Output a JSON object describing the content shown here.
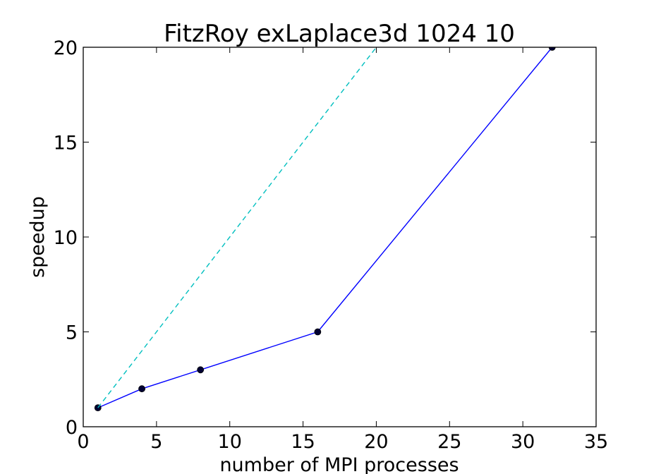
{
  "chart_data": {
    "type": "line",
    "title": "FitzRoy exLaplace3d 1024 10",
    "xlabel": "number of MPI processes",
    "ylabel": "speedup",
    "xlim": [
      0,
      35
    ],
    "ylim": [
      0,
      20
    ],
    "xticks": [
      "0",
      "5",
      "10",
      "15",
      "20",
      "25",
      "30",
      "35"
    ],
    "yticks": [
      "0",
      "5",
      "10",
      "15",
      "20"
    ],
    "grid": false,
    "series": [
      {
        "style": "solid-with-markers",
        "color": "#0000ff",
        "marker_color": "#000033",
        "x": [
          1,
          4,
          8,
          16,
          32
        ],
        "y": [
          1,
          2,
          3,
          5,
          20
        ]
      },
      {
        "style": "dashed",
        "color": "#00bfbf",
        "x": [
          1,
          20
        ],
        "y": [
          1,
          20
        ]
      }
    ]
  }
}
